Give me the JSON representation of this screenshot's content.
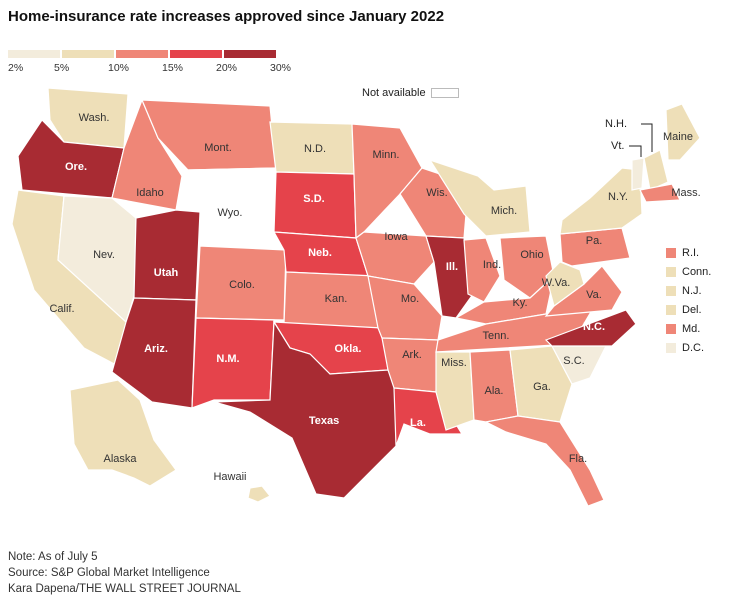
{
  "title": "Home-insurance rate increases approved since January 2022",
  "legend": {
    "ticks": [
      "2%",
      "5%",
      "10%",
      "15%",
      "20%",
      "30%"
    ],
    "colors": [
      "#f3ecdc",
      "#eedfb8",
      "#ef8677",
      "#e5434b",
      "#a82b33"
    ],
    "not_available": "Not available"
  },
  "colors": {
    "na": "#ffffff",
    "tier1": "#f3ecdc",
    "tier2": "#eedfb8",
    "tier3": "#ef8677",
    "tier4": "#e5434b",
    "tier5": "#a82b33"
  },
  "states": [
    {
      "name": "Wash.",
      "bin": "5-10%"
    },
    {
      "name": "Ore.",
      "bin": "20-30%"
    },
    {
      "name": "Calif.",
      "bin": "5-10%"
    },
    {
      "name": "Nev.",
      "bin": "2-5%"
    },
    {
      "name": "Idaho",
      "bin": "10-15%"
    },
    {
      "name": "Mont.",
      "bin": "10-15%"
    },
    {
      "name": "Wyo.",
      "bin": "Not available"
    },
    {
      "name": "Utah",
      "bin": "20-30%"
    },
    {
      "name": "Ariz.",
      "bin": "20-30%"
    },
    {
      "name": "Colo.",
      "bin": "10-15%"
    },
    {
      "name": "N.M.",
      "bin": "15-20%"
    },
    {
      "name": "N.D.",
      "bin": "5-10%"
    },
    {
      "name": "S.D.",
      "bin": "15-20%"
    },
    {
      "name": "Neb.",
      "bin": "15-20%"
    },
    {
      "name": "Kan.",
      "bin": "10-15%"
    },
    {
      "name": "Okla.",
      "bin": "15-20%"
    },
    {
      "name": "Texas",
      "bin": "20-30%"
    },
    {
      "name": "Minn.",
      "bin": "10-15%"
    },
    {
      "name": "Iowa",
      "bin": "10-15%"
    },
    {
      "name": "Mo.",
      "bin": "10-15%"
    },
    {
      "name": "Ark.",
      "bin": "10-15%"
    },
    {
      "name": "La.",
      "bin": "15-20%"
    },
    {
      "name": "Wis.",
      "bin": "10-15%"
    },
    {
      "name": "Ill.",
      "bin": "20-30%"
    },
    {
      "name": "Mich.",
      "bin": "5-10%"
    },
    {
      "name": "Ind.",
      "bin": "10-15%"
    },
    {
      "name": "Ohio",
      "bin": "10-15%"
    },
    {
      "name": "Ky.",
      "bin": "10-15%"
    },
    {
      "name": "Tenn.",
      "bin": "10-15%"
    },
    {
      "name": "Miss.",
      "bin": "5-10%"
    },
    {
      "name": "Ala.",
      "bin": "10-15%"
    },
    {
      "name": "Ga.",
      "bin": "5-10%"
    },
    {
      "name": "Fla.",
      "bin": "10-15%"
    },
    {
      "name": "S.C.",
      "bin": "2-5%"
    },
    {
      "name": "N.C.",
      "bin": "20-30%"
    },
    {
      "name": "Va.",
      "bin": "10-15%"
    },
    {
      "name": "W.Va.",
      "bin": "5-10%"
    },
    {
      "name": "Pa.",
      "bin": "10-15%"
    },
    {
      "name": "N.Y.",
      "bin": "5-10%"
    },
    {
      "name": "Maine",
      "bin": "5-10%"
    },
    {
      "name": "Vt.",
      "bin": "2-5%"
    },
    {
      "name": "N.H.",
      "bin": "5-10%"
    },
    {
      "name": "Mass.",
      "bin": "10-15%"
    },
    {
      "name": "R.I.",
      "bin": "10-15%"
    },
    {
      "name": "Conn.",
      "bin": "5-10%"
    },
    {
      "name": "N.J.",
      "bin": "5-10%"
    },
    {
      "name": "Del.",
      "bin": "5-10%"
    },
    {
      "name": "Md.",
      "bin": "10-15%"
    },
    {
      "name": "D.C.",
      "bin": "2-5%"
    },
    {
      "name": "Alaska",
      "bin": "5-10%"
    },
    {
      "name": "Hawaii",
      "bin": "5-10%"
    }
  ],
  "northeast_list": [
    {
      "name": "R.I.",
      "color": "#ef8677"
    },
    {
      "name": "Conn.",
      "color": "#eedfb8"
    },
    {
      "name": "N.J.",
      "color": "#eedfb8"
    },
    {
      "name": "Del.",
      "color": "#eedfb8"
    },
    {
      "name": "Md.",
      "color": "#ef8677"
    },
    {
      "name": "D.C.",
      "color": "#f3ecdc"
    }
  ],
  "footer": {
    "note": "Note: As of July 5",
    "source": "Source: S&P Global Market Intelligence",
    "credit": "Kara Dapena/THE WALL STREET JOURNAL"
  }
}
